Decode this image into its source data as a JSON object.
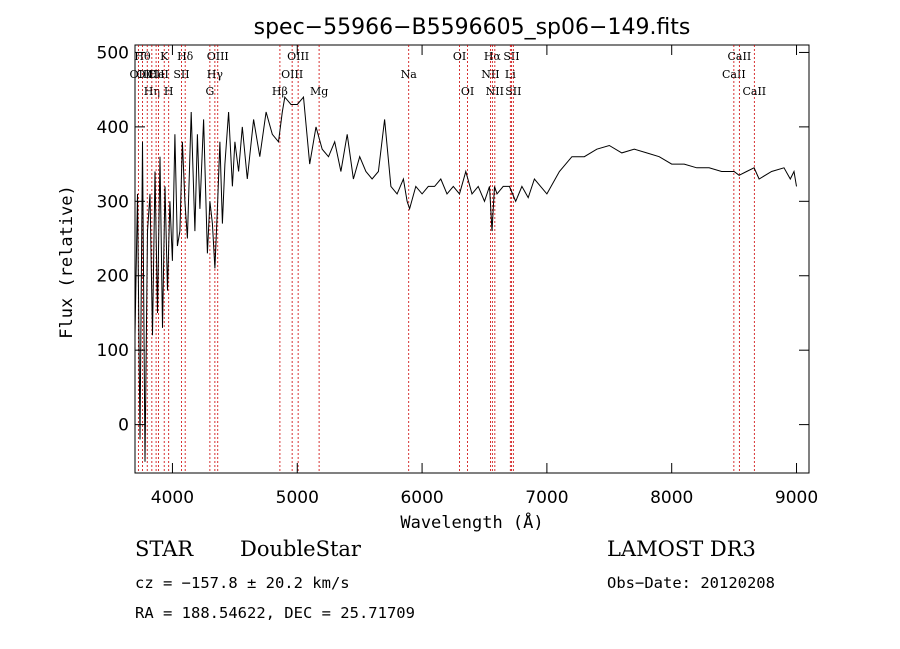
{
  "chart_data": {
    "type": "line",
    "title": "spec−55966−B5596605_sp06−149.fits",
    "xlabel": "Wavelength (Å)",
    "ylabel": "Flux (relative)",
    "xlim": [
      3700,
      9100
    ],
    "ylim": [
      -65,
      510
    ],
    "xticks": [
      4000,
      5000,
      6000,
      7000,
      8000,
      9000
    ],
    "yticks": [
      0,
      100,
      200,
      300,
      400,
      500
    ],
    "series": [
      {
        "name": "flux",
        "x": [
          3700,
          3720,
          3740,
          3760,
          3780,
          3800,
          3820,
          3840,
          3860,
          3880,
          3900,
          3920,
          3940,
          3960,
          3980,
          4000,
          4020,
          4040,
          4060,
          4080,
          4100,
          4120,
          4150,
          4180,
          4200,
          4220,
          4250,
          4280,
          4300,
          4320,
          4340,
          4360,
          4380,
          4400,
          4420,
          4450,
          4480,
          4500,
          4530,
          4560,
          4600,
          4650,
          4700,
          4750,
          4800,
          4850,
          4880,
          4900,
          4950,
          5000,
          5050,
          5100,
          5150,
          5200,
          5250,
          5300,
          5350,
          5400,
          5450,
          5500,
          5550,
          5600,
          5650,
          5700,
          5750,
          5800,
          5850,
          5880,
          5900,
          5950,
          6000,
          6050,
          6100,
          6150,
          6200,
          6250,
          6300,
          6350,
          6400,
          6450,
          6500,
          6540,
          6560,
          6580,
          6600,
          6650,
          6700,
          6750,
          6800,
          6850,
          6900,
          6950,
          7000,
          7100,
          7200,
          7300,
          7400,
          7500,
          7600,
          7700,
          7800,
          7900,
          8000,
          8100,
          8200,
          8300,
          8400,
          8500,
          8540,
          8600,
          8660,
          8700,
          8800,
          8900,
          8950,
          8980,
          9000
        ],
        "y": [
          120,
          310,
          -20,
          380,
          -50,
          260,
          310,
          120,
          340,
          150,
          360,
          130,
          320,
          180,
          300,
          220,
          390,
          240,
          260,
          380,
          300,
          250,
          420,
          260,
          390,
          290,
          410,
          230,
          300,
          270,
          210,
          290,
          380,
          270,
          350,
          420,
          320,
          380,
          340,
          400,
          330,
          410,
          360,
          420,
          390,
          380,
          420,
          440,
          430,
          430,
          440,
          350,
          400,
          370,
          360,
          380,
          340,
          390,
          330,
          360,
          340,
          330,
          340,
          410,
          320,
          310,
          330,
          300,
          290,
          320,
          310,
          320,
          320,
          330,
          310,
          320,
          310,
          340,
          310,
          320,
          300,
          320,
          260,
          320,
          310,
          320,
          320,
          300,
          320,
          305,
          330,
          320,
          310,
          340,
          360,
          360,
          370,
          375,
          365,
          370,
          365,
          360,
          350,
          350,
          345,
          345,
          340,
          340,
          335,
          340,
          345,
          330,
          340,
          345,
          330,
          340,
          320
        ]
      }
    ],
    "lines": [
      {
        "x": 3727,
        "label": "OII",
        "row": 2
      },
      {
        "x": 3760,
        "label": "Hθ",
        "row": 1
      },
      {
        "x": 3798,
        "label": "OIII",
        "row": 2
      },
      {
        "x": 3835,
        "label": "Hη",
        "row": 3
      },
      {
        "x": 3869,
        "label": "CII",
        "row": 2
      },
      {
        "x": 3889,
        "label": "HeI",
        "row": 2
      },
      {
        "x": 3934,
        "label": "K",
        "row": 1
      },
      {
        "x": 3970,
        "label": "H",
        "row": 3
      },
      {
        "x": 4072,
        "label": "SII",
        "row": 2
      },
      {
        "x": 4102,
        "label": "Hδ",
        "row": 1
      },
      {
        "x": 4300,
        "label": "G",
        "row": 3
      },
      {
        "x": 4340,
        "label": "Hγ",
        "row": 2
      },
      {
        "x": 4363,
        "label": "OIII",
        "row": 1
      },
      {
        "x": 4861,
        "label": "Hβ",
        "row": 3
      },
      {
        "x": 4959,
        "label": "OIII",
        "row": 2
      },
      {
        "x": 5007,
        "label": "OIII",
        "row": 1
      },
      {
        "x": 5175,
        "label": "Mg",
        "row": 3
      },
      {
        "x": 5893,
        "label": "Na",
        "row": 2
      },
      {
        "x": 6300,
        "label": "OI",
        "row": 1
      },
      {
        "x": 6364,
        "label": "OI",
        "row": 3
      },
      {
        "x": 6548,
        "label": "NII",
        "row": 2
      },
      {
        "x": 6563,
        "label": "Hα",
        "row": 1
      },
      {
        "x": 6583,
        "label": "NII",
        "row": 3
      },
      {
        "x": 6707,
        "label": "Li",
        "row": 2
      },
      {
        "x": 6716,
        "label": "SII",
        "row": 1
      },
      {
        "x": 6731,
        "label": "SII",
        "row": 3
      },
      {
        "x": 8498,
        "label": "CaII",
        "row": 2
      },
      {
        "x": 8542,
        "label": "CaII",
        "row": 1
      },
      {
        "x": 8662,
        "label": "CaII",
        "row": 3
      }
    ]
  },
  "info": {
    "obj_class": "STAR",
    "subclass": "DoubleStar",
    "survey": "LAMOST DR3",
    "cz": "cz = −157.8 ± 20.2 km/s",
    "obs_date": "Obs−Date: 20120208",
    "coords": "RA = 188.54622, DEC =  25.71709"
  }
}
